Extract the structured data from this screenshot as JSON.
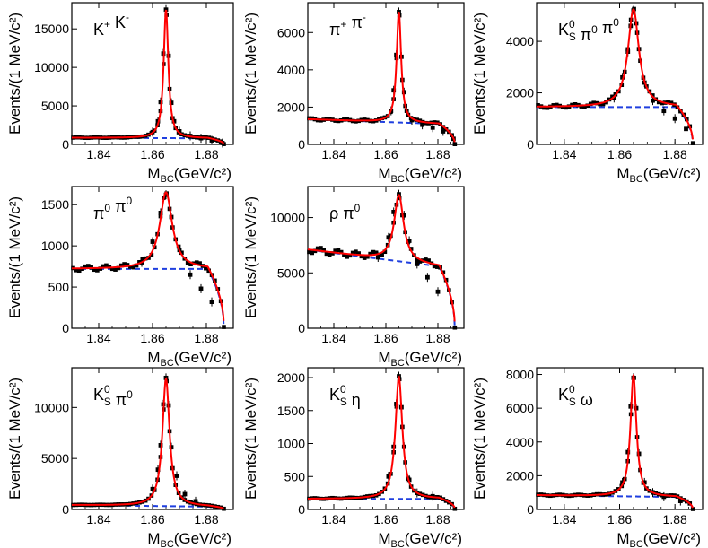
{
  "chart_data": [
    {
      "type": "scatter",
      "label_parts": [
        {
          "t": "K"
        },
        {
          "t": "+",
          "sup": true
        },
        {
          "t": " K"
        },
        {
          "t": "-",
          "sup": true
        }
      ],
      "ylabel": "Events/(1 MeV/c²)",
      "xlabel": "M_BC(GeV/c²)",
      "xlim": [
        1.83,
        1.89
      ],
      "ylim": [
        0,
        18400
      ],
      "x_ticks": [
        "1.84",
        "1.86",
        "1.88"
      ],
      "y_ticks": [
        0,
        5000,
        10000,
        15000
      ],
      "curve": {
        "mean": 1.865,
        "width": 0.00105,
        "amp": 16700,
        "bg_level": 850,
        "bg_slope": -1500,
        "kin_end": 1.8865
      },
      "series": [
        {
          "name": "data",
          "color": "#000000",
          "x": [
            1.86,
            1.862,
            1.863,
            1.864,
            1.865,
            1.866,
            1.867,
            1.868,
            1.87,
            1.874,
            1.878,
            1.882,
            1.886
          ],
          "y": [
            1600,
            3000,
            5500,
            11800,
            17500,
            11500,
            5400,
            3000,
            1700,
            1100,
            800,
            520,
            180
          ]
        },
        {
          "name": "fit",
          "color": "#ff0000"
        },
        {
          "name": "background",
          "color": "#1f3fdf"
        }
      ]
    },
    {
      "type": "scatter",
      "label_parts": [
        {
          "t": "π"
        },
        {
          "t": "+",
          "sup": true
        },
        {
          "t": " π"
        },
        {
          "t": "-",
          "sup": true
        }
      ],
      "ylabel": "Events/(1 MeV/c²)",
      "xlabel": "M_BC(GeV/c²)",
      "xlim": [
        1.83,
        1.89
      ],
      "ylim": [
        0,
        7600
      ],
      "x_ticks": [
        "1.84",
        "1.86",
        "1.88"
      ],
      "y_ticks": [
        0,
        2000,
        4000,
        6000
      ],
      "curve": {
        "mean": 1.865,
        "width": 0.00105,
        "amp": 5950,
        "bg_level": 1300,
        "bg_slope": -5000,
        "kin_end": 1.8865
      },
      "series": [
        {
          "name": "data",
          "color": "#000000",
          "x": [
            1.862,
            1.863,
            1.864,
            1.865,
            1.866,
            1.867,
            1.868,
            1.87,
            1.874,
            1.878,
            1.882,
            1.886
          ],
          "y": [
            1800,
            2900,
            4800,
            7100,
            4700,
            2800,
            1800,
            1300,
            1050,
            900,
            700,
            300
          ]
        },
        {
          "name": "fit",
          "color": "#ff0000"
        },
        {
          "name": "background",
          "color": "#1f3fdf"
        }
      ]
    },
    {
      "type": "scatter",
      "label_parts": [
        {
          "t": "K"
        },
        {
          "t": "0",
          "sup": true
        },
        {
          "t": "S",
          "sub": true
        },
        {
          "t": " π"
        },
        {
          "t": "0",
          "sup": true
        },
        {
          "t": " π"
        },
        {
          "t": "0",
          "sup": true
        }
      ],
      "ylabel": "Events/(1 MeV/c²)",
      "xlabel": "M_BC(GeV/c²)",
      "xlim": [
        1.83,
        1.89
      ],
      "ylim": [
        0,
        5500
      ],
      "x_ticks": [
        "1.84",
        "1.86",
        "1.88"
      ],
      "y_ticks": [
        0,
        2000,
        4000
      ],
      "curve": {
        "mean": 1.865,
        "width": 0.0024,
        "amp": 3800,
        "bg_level": 1450,
        "bg_slope": 0,
        "kin_end": 1.8865
      },
      "series": [
        {
          "name": "data",
          "color": "#000000",
          "x": [
            1.858,
            1.861,
            1.863,
            1.864,
            1.865,
            1.866,
            1.867,
            1.869,
            1.872,
            1.876,
            1.88,
            1.884
          ],
          "y": [
            1800,
            2600,
            3600,
            4600,
            5200,
            4700,
            3700,
            2400,
            1700,
            1300,
            1000,
            600
          ]
        },
        {
          "name": "fit",
          "color": "#ff0000"
        },
        {
          "name": "background",
          "color": "#1f3fdf"
        }
      ]
    },
    {
      "type": "scatter",
      "label_parts": [
        {
          "t": "π"
        },
        {
          "t": "0",
          "sup": true
        },
        {
          "t": " π"
        },
        {
          "t": "0",
          "sup": true
        }
      ],
      "ylabel": "Events/(1 MeV/c²)",
      "xlabel": "M_BC(GeV/c²)",
      "xlim": [
        1.83,
        1.89
      ],
      "ylim": [
        0,
        1720
      ],
      "x_ticks": [
        "1.84",
        "1.86",
        "1.88"
      ],
      "y_ticks": [
        0,
        500,
        1000,
        1500
      ],
      "curve": {
        "mean": 1.865,
        "width": 0.0028,
        "amp": 930,
        "bg_level": 720,
        "bg_slope": 0,
        "kin_end": 1.8865
      },
      "series": [
        {
          "name": "data",
          "color": "#000000",
          "x": [
            1.856,
            1.86,
            1.863,
            1.865,
            1.867,
            1.87,
            1.874,
            1.878,
            1.882
          ],
          "y": [
            800,
            1050,
            1400,
            1620,
            1350,
            950,
            650,
            480,
            320
          ]
        },
        {
          "name": "fit",
          "color": "#ff0000"
        },
        {
          "name": "background",
          "color": "#1f3fdf"
        }
      ]
    },
    {
      "type": "scatter",
      "label_parts": [
        {
          "t": "ρ π"
        },
        {
          "t": "0",
          "sup": true
        }
      ],
      "ylabel": "Events/(1 MeV/c²)",
      "xlabel": "M_BC(GeV/c²)",
      "xlim": [
        1.83,
        1.89
      ],
      "ylim": [
        0,
        12800
      ],
      "x_ticks": [
        "1.84",
        "1.86",
        "1.88"
      ],
      "y_ticks": [
        0,
        5000,
        10000
      ],
      "curve": {
        "mean": 1.865,
        "width": 0.0022,
        "amp": 6000,
        "bg_level": 6800,
        "bg_slope": -30000,
        "kin_end": 1.8865
      },
      "series": [
        {
          "name": "data",
          "color": "#000000",
          "x": [
            1.857,
            1.861,
            1.863,
            1.865,
            1.867,
            1.869,
            1.872,
            1.876,
            1.88
          ],
          "y": [
            6400,
            8200,
            10500,
            12100,
            10200,
            7900,
            5800,
            4600,
            3300
          ]
        },
        {
          "name": "fit",
          "color": "#ff0000"
        },
        {
          "name": "background",
          "color": "#1f3fdf"
        }
      ]
    },
    {
      "type": "scatter",
      "label_parts": [
        {
          "t": "K"
        },
        {
          "t": "0",
          "sup": true
        },
        {
          "t": "S",
          "sub": true
        },
        {
          "t": " π"
        },
        {
          "t": "0",
          "sup": true
        }
      ],
      "ylabel": "Events/(1 MeV/c²)",
      "xlabel": "M_BC(GeV/c²)",
      "xlim": [
        1.83,
        1.89
      ],
      "ylim": [
        0,
        13900
      ],
      "x_ticks": [
        "1.84",
        "1.86",
        "1.88"
      ],
      "y_ticks": [
        0,
        5000,
        10000
      ],
      "curve": {
        "mean": 1.865,
        "width": 0.0016,
        "amp": 12500,
        "bg_level": 400,
        "bg_slope": -3000,
        "kin_end": 1.8865
      },
      "series": [
        {
          "name": "data",
          "color": "#000000",
          "x": [
            1.86,
            1.862,
            1.863,
            1.864,
            1.865,
            1.866,
            1.867,
            1.869,
            1.872,
            1.876
          ],
          "y": [
            2000,
            3900,
            6300,
            10300,
            12900,
            10200,
            6100,
            3300,
            1500,
            800
          ]
        },
        {
          "name": "fit",
          "color": "#ff0000"
        },
        {
          "name": "background",
          "color": "#1f3fdf"
        }
      ]
    },
    {
      "type": "scatter",
      "label_parts": [
        {
          "t": "K"
        },
        {
          "t": "0",
          "sup": true
        },
        {
          "t": "S",
          "sub": true
        },
        {
          "t": " η"
        }
      ],
      "ylabel": "Events/(1 MeV/c²)",
      "xlabel": "M_BC(GeV/c²)",
      "xlim": [
        1.83,
        1.89
      ],
      "ylim": [
        0,
        2150
      ],
      "x_ticks": [
        "1.84",
        "1.86",
        "1.88"
      ],
      "y_ticks": [
        0,
        500,
        1000,
        1500,
        2000
      ],
      "curve": {
        "mean": 1.865,
        "width": 0.0016,
        "amp": 1850,
        "bg_level": 160,
        "bg_slope": 0,
        "kin_end": 1.8865
      },
      "series": [
        {
          "name": "data",
          "color": "#000000",
          "x": [
            1.861,
            1.863,
            1.864,
            1.865,
            1.866,
            1.867,
            1.869,
            1.872,
            1.878
          ],
          "y": [
            500,
            950,
            1600,
            2020,
            1550,
            950,
            450,
            250,
            200
          ]
        },
        {
          "name": "fit",
          "color": "#ff0000"
        },
        {
          "name": "background",
          "color": "#1f3fdf"
        }
      ]
    },
    {
      "type": "scatter",
      "label_parts": [
        {
          "t": "K"
        },
        {
          "t": "0",
          "sup": true
        },
        {
          "t": "S",
          "sub": true
        },
        {
          "t": " ω"
        }
      ],
      "ylabel": "Events/(1 MeV/c²)",
      "xlabel": "M_BC(GeV/c²)",
      "xlim": [
        1.83,
        1.89
      ],
      "ylim": [
        0,
        8400
      ],
      "x_ticks": [
        "1.84",
        "1.86",
        "1.88"
      ],
      "y_ticks": [
        0,
        2000,
        4000,
        6000,
        8000
      ],
      "curve": {
        "mean": 1.865,
        "width": 0.0013,
        "amp": 7200,
        "bg_level": 820,
        "bg_slope": -2000,
        "kin_end": 1.8865
      },
      "series": [
        {
          "name": "data",
          "color": "#000000",
          "x": [
            1.861,
            1.863,
            1.864,
            1.865,
            1.866,
            1.867,
            1.869,
            1.872,
            1.876,
            1.882
          ],
          "y": [
            1600,
            3400,
            6100,
            7800,
            6000,
            3300,
            1600,
            1000,
            750,
            500
          ]
        },
        {
          "name": "fit",
          "color": "#ff0000"
        },
        {
          "name": "background",
          "color": "#1f3fdf"
        }
      ]
    }
  ]
}
